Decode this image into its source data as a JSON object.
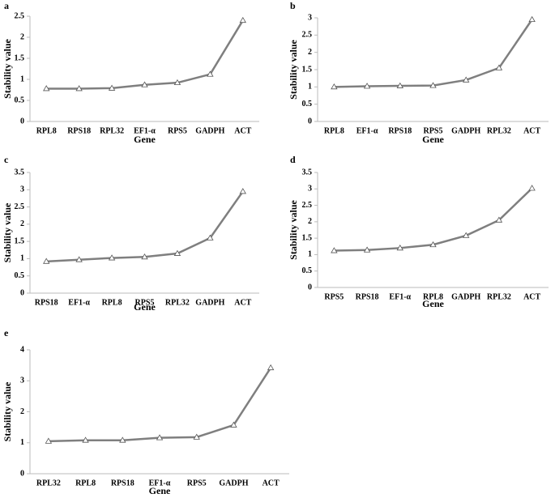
{
  "chart_data": [
    {
      "type": "line",
      "panel": "a",
      "xlabel": "Gene",
      "ylabel": "Stability value",
      "categories": [
        "RPL8",
        "RPS18",
        "RPL32",
        "EF1-α",
        "RPS5",
        "GADPH",
        "ACT"
      ],
      "values": [
        0.78,
        0.78,
        0.79,
        0.87,
        0.92,
        1.12,
        2.4
      ],
      "color": "#7f7f7f",
      "ylim": [
        0,
        2.5
      ],
      "yticks": [
        0,
        0.5,
        1,
        1.5,
        2,
        2.5
      ]
    },
    {
      "type": "line",
      "panel": "b",
      "xlabel": "Gene",
      "ylabel": "Stability value",
      "categories": [
        "RPL8",
        "EF1-α",
        "RPS18",
        "RPS5",
        "GADPH",
        "RPL32",
        "ACT"
      ],
      "values": [
        1.0,
        1.02,
        1.03,
        1.04,
        1.2,
        1.55,
        2.95
      ],
      "color": "#7f7f7f",
      "ylim": [
        0,
        3
      ],
      "yticks": [
        0,
        0.5,
        1,
        1.5,
        2,
        2.5,
        3
      ]
    },
    {
      "type": "line",
      "panel": "c",
      "xlabel": "Gene",
      "ylabel": "Stability value",
      "categories": [
        "RPS18",
        "EF1-α",
        "RPL8",
        "RPS5",
        "RPL32",
        "GADPH",
        "ACT"
      ],
      "values": [
        0.92,
        0.97,
        1.02,
        1.05,
        1.15,
        1.6,
        2.95
      ],
      "color": "#7f7f7f",
      "ylim": [
        0,
        3.5
      ],
      "yticks": [
        0,
        0.5,
        1,
        1.5,
        2,
        2.5,
        3,
        3.5
      ]
    },
    {
      "type": "line",
      "panel": "d",
      "xlabel": "Gene",
      "ylabel": "Stability value",
      "categories": [
        "RPS5",
        "RPS18",
        "EF1-α",
        "RPL8",
        "GADPH",
        "RPL32",
        "ACT"
      ],
      "values": [
        1.12,
        1.14,
        1.2,
        1.3,
        1.58,
        2.05,
        3.02
      ],
      "color": "#7f7f7f",
      "ylim": [
        0,
        3.5
      ],
      "yticks": [
        0,
        0.5,
        1,
        1.5,
        2,
        2.5,
        3,
        3.5
      ]
    },
    {
      "type": "line",
      "panel": "e",
      "xlabel": "Gene",
      "ylabel": "Stability value",
      "categories": [
        "RPL32",
        "RPL8",
        "RPS18",
        "EF1-α",
        "RPS5",
        "GADPH",
        "ACT"
      ],
      "values": [
        1.05,
        1.08,
        1.08,
        1.16,
        1.18,
        1.57,
        3.42
      ],
      "color": "#7f7f7f",
      "ylim": [
        0,
        4
      ],
      "yticks": [
        0,
        1,
        2,
        3,
        4
      ]
    }
  ]
}
